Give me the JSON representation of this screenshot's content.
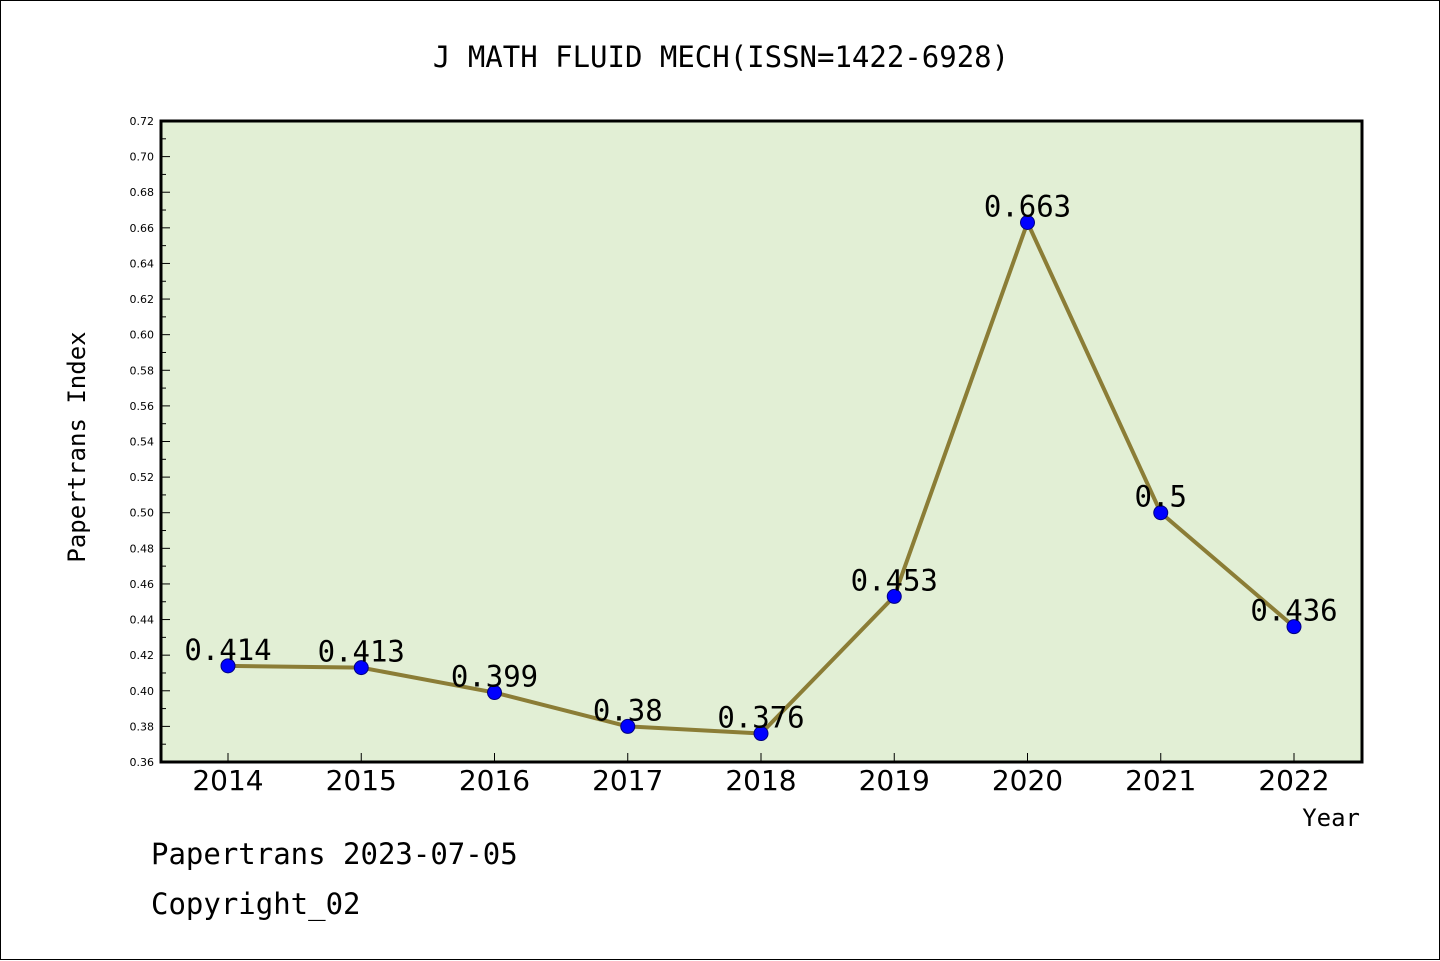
{
  "chart_data": {
    "type": "line",
    "title": "J MATH FLUID MECH(ISSN=1422-6928)",
    "xlabel": "Year",
    "ylabel": "Papertrans Index",
    "categories": [
      "2014",
      "2015",
      "2016",
      "2017",
      "2018",
      "2019",
      "2020",
      "2021",
      "2022"
    ],
    "series": [
      {
        "values": [
          0.414,
          0.413,
          0.399,
          0.38,
          0.376,
          0.453,
          0.663,
          0.5,
          0.436
        ],
        "labels": [
          "0.414",
          "0.413",
          "0.399",
          "0.38",
          "0.376",
          "0.453",
          "0.663",
          "0.5",
          "0.436"
        ]
      }
    ],
    "ylim": [
      0.36,
      0.72
    ],
    "yticks": [
      "0.36",
      "0.38",
      "0.40",
      "0.42",
      "0.44",
      "0.46",
      "0.48",
      "0.50",
      "0.52",
      "0.54",
      "0.56",
      "0.58",
      "0.60",
      "0.62",
      "0.64",
      "0.66",
      "0.68",
      "0.70",
      "0.72"
    ],
    "grid": false,
    "colors": {
      "plot_background": "#e2efd5",
      "line": "#8b7d36",
      "marker": "#0000ff"
    }
  },
  "footer": {
    "line1": "Papertrans 2023-07-05",
    "line2": "Copyright_02"
  }
}
